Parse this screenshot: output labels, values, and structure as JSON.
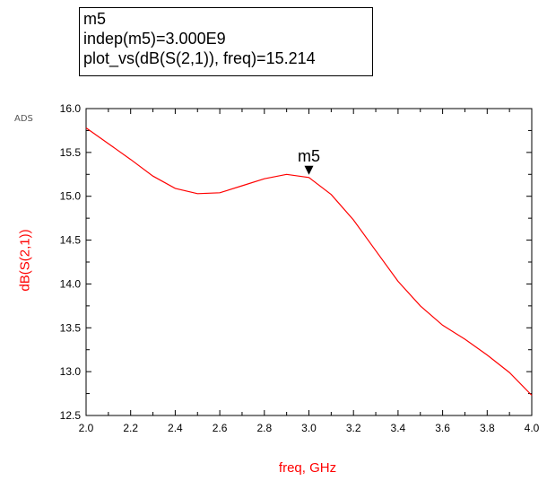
{
  "marker_readout": {
    "line1": "m5",
    "line2": "indep(m5)=3.000E9",
    "line3": "plot_vs(dB(S(2,1)), freq)=15.214"
  },
  "watermark": "ADS",
  "chart_data": {
    "type": "line",
    "xlabel": "freq, GHz",
    "ylabel": "dB(S(2,1))",
    "xlim": [
      2.0,
      4.0
    ],
    "ylim": [
      12.5,
      16.0
    ],
    "x_ticks": [
      "2.0",
      "2.2",
      "2.4",
      "2.6",
      "2.8",
      "3.0",
      "3.2",
      "3.4",
      "3.6",
      "3.8",
      "4.0"
    ],
    "y_ticks": [
      "12.5",
      "13.0",
      "13.5",
      "14.0",
      "14.5",
      "15.0",
      "15.5",
      "16.0"
    ],
    "grid": false,
    "series": [
      {
        "color": "#ff0000",
        "x": [
          2.0,
          2.1,
          2.2,
          2.3,
          2.4,
          2.5,
          2.6,
          2.7,
          2.8,
          2.9,
          3.0,
          3.1,
          3.2,
          3.3,
          3.4,
          3.5,
          3.6,
          3.7,
          3.8,
          3.9,
          4.0
        ],
        "y": [
          15.78,
          15.6,
          15.42,
          15.23,
          15.09,
          15.03,
          15.04,
          15.12,
          15.2,
          15.25,
          15.214,
          15.02,
          14.73,
          14.38,
          14.03,
          13.75,
          13.53,
          13.37,
          13.19,
          12.99,
          12.73
        ]
      }
    ],
    "markers": [
      {
        "name": "m5",
        "x": 3.0,
        "y": 15.214
      }
    ]
  }
}
